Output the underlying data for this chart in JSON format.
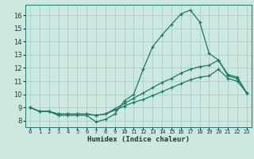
{
  "background_color": "#cce8e0",
  "grid_color": "#aacccc",
  "line_color": "#1a7a6a",
  "xlabel": "Humidex (Indice chaleur)",
  "xlim": [
    -0.5,
    23.5
  ],
  "ylim": [
    7.5,
    16.8
  ],
  "yticks": [
    8,
    9,
    10,
    11,
    12,
    13,
    14,
    15,
    16
  ],
  "xticks": [
    0,
    1,
    2,
    3,
    4,
    5,
    6,
    7,
    8,
    9,
    10,
    11,
    12,
    13,
    14,
    15,
    16,
    17,
    18,
    19,
    20,
    21,
    22,
    23
  ],
  "line1_x": [
    0,
    1,
    2,
    3,
    4,
    5,
    6,
    7,
    8,
    9,
    10,
    11,
    12,
    13,
    14,
    15,
    16,
    17,
    18,
    19,
    20,
    21,
    22,
    23
  ],
  "line1_y": [
    9.0,
    8.7,
    8.7,
    8.4,
    8.4,
    8.4,
    8.4,
    7.9,
    8.1,
    8.5,
    9.5,
    10.0,
    11.9,
    13.6,
    14.5,
    15.3,
    16.1,
    16.4,
    15.5,
    13.1,
    12.6,
    11.4,
    11.2,
    10.1
  ],
  "line2_x": [
    0,
    1,
    2,
    3,
    4,
    5,
    6,
    7,
    8,
    9,
    10,
    11,
    12,
    13,
    14,
    15,
    16,
    17,
    18,
    19,
    20,
    21,
    22,
    23
  ],
  "line2_y": [
    9.0,
    8.7,
    8.7,
    8.5,
    8.5,
    8.5,
    8.5,
    8.4,
    8.5,
    8.9,
    9.3,
    9.7,
    10.1,
    10.5,
    10.9,
    11.2,
    11.6,
    11.9,
    12.1,
    12.2,
    12.6,
    11.5,
    11.3,
    10.1
  ],
  "line3_x": [
    0,
    1,
    2,
    3,
    4,
    5,
    6,
    7,
    8,
    9,
    10,
    11,
    12,
    13,
    14,
    15,
    16,
    17,
    18,
    19,
    20,
    21,
    22,
    23
  ],
  "line3_y": [
    9.0,
    8.7,
    8.7,
    8.5,
    8.5,
    8.5,
    8.5,
    8.4,
    8.5,
    8.8,
    9.1,
    9.4,
    9.6,
    9.9,
    10.2,
    10.5,
    10.8,
    11.1,
    11.3,
    11.4,
    11.9,
    11.2,
    11.0,
    10.1
  ],
  "marker": "+",
  "markersize": 3.5,
  "linewidth": 0.9
}
